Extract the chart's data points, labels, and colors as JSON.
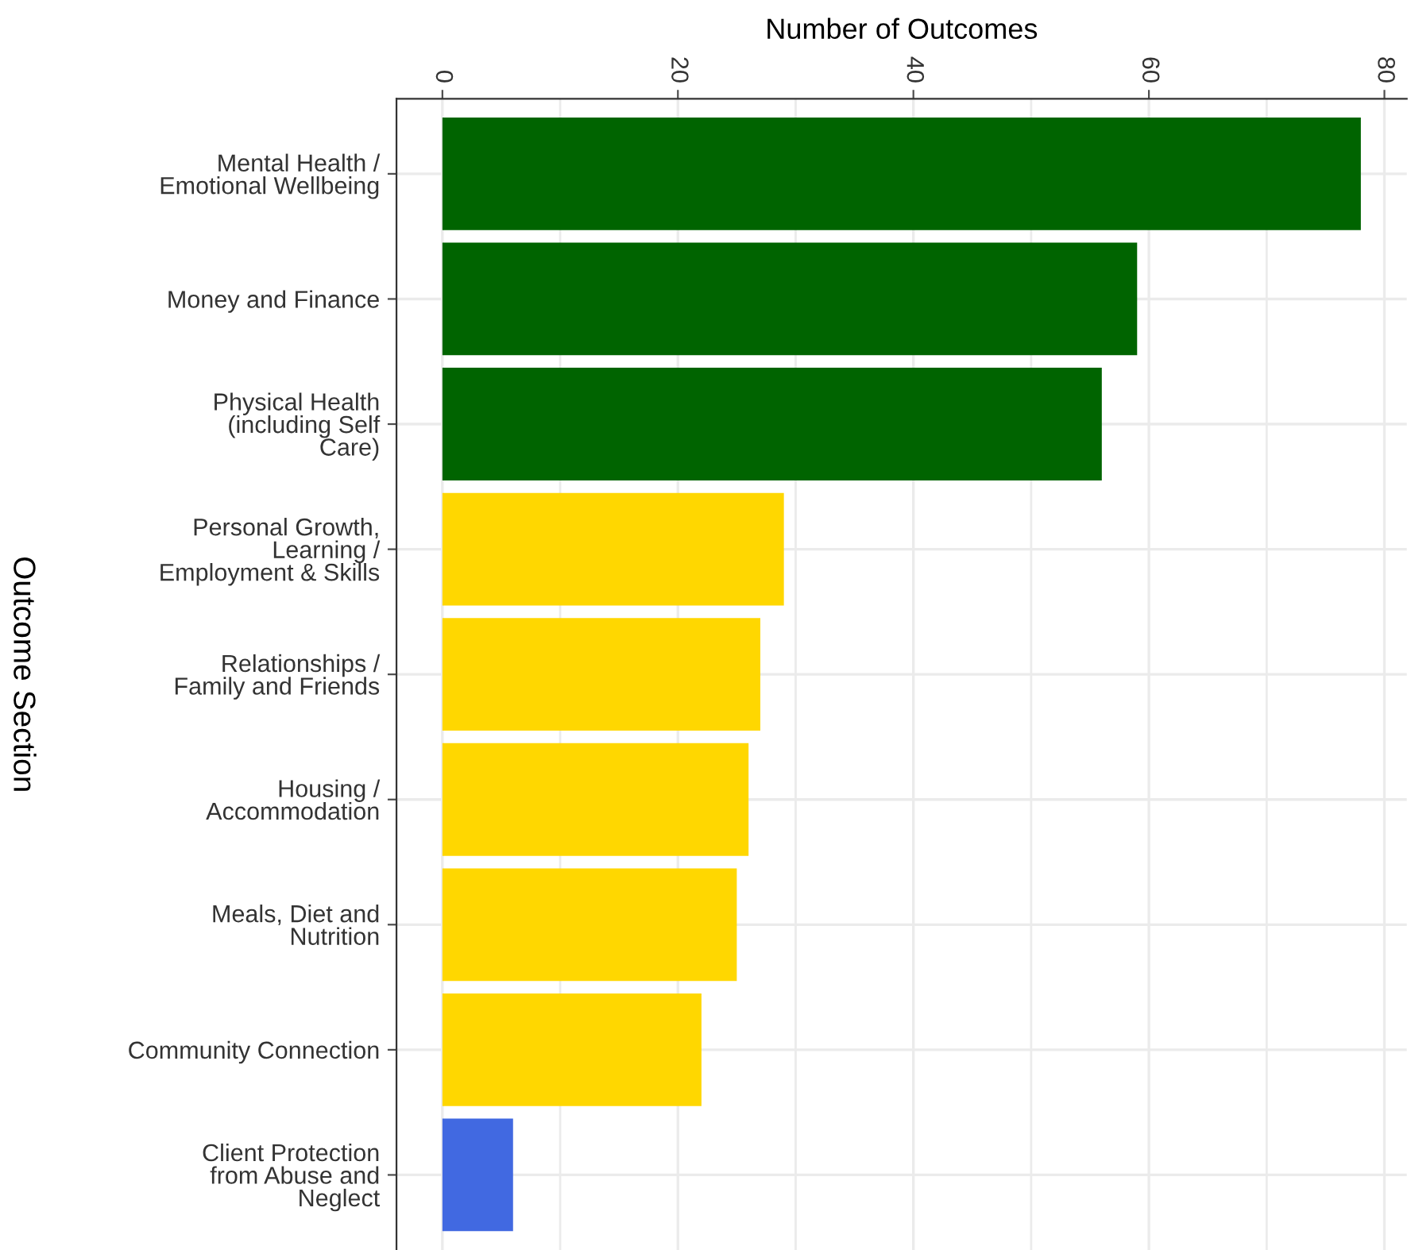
{
  "chart_data": {
    "type": "bar",
    "orientation": "horizontal",
    "xlabel": "Number of Outcomes",
    "ylabel": "Outcome Section",
    "categories": [
      "Mental Health /\nEmotional Wellbeing",
      "Money and Finance",
      "Physical Health\n(including Self\nCare)",
      "Personal Growth,\nLearning /\nEmployment & Skills",
      "Relationships /\nFamily and Friends",
      "Housing /\nAccommodation",
      "Meals, Diet and\nNutrition",
      "Community Connection",
      "Client Protection\nfrom Abuse and\nNeglect"
    ],
    "values": [
      78,
      59,
      56,
      29,
      27,
      26,
      25,
      22,
      6
    ],
    "colors": [
      "#006400",
      "#006400",
      "#006400",
      "#ffd700",
      "#ffd700",
      "#ffd700",
      "#ffd700",
      "#ffd700",
      "#4169e1"
    ],
    "xlim": [
      -3.9,
      81.9
    ],
    "xticks": [
      0,
      20,
      40,
      60,
      80
    ],
    "grid": true
  }
}
